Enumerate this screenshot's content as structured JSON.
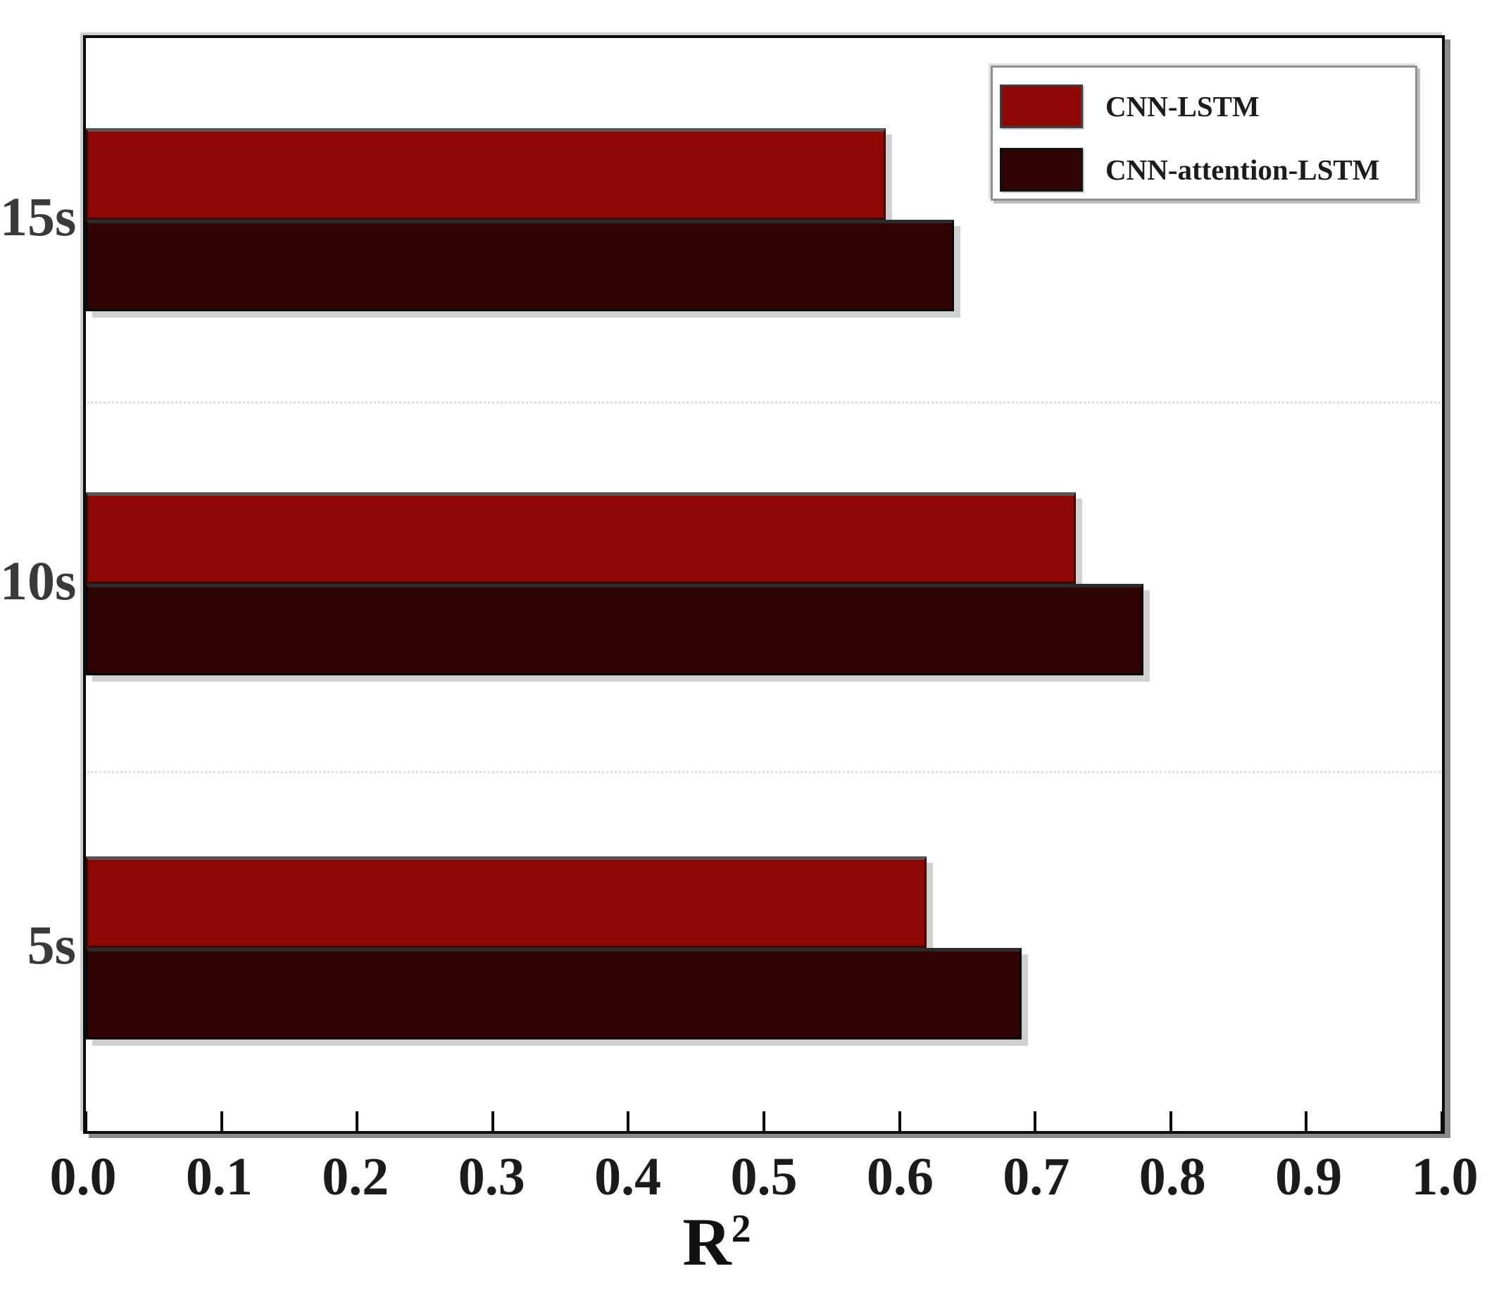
{
  "chart_data": {
    "type": "bar",
    "orientation": "horizontal",
    "title": "",
    "xlabel": "R",
    "xlabel_superscript": "2",
    "categories": [
      "15s",
      "10s",
      "5s"
    ],
    "series": [
      {
        "name": "CNN-LSTM",
        "color": "#8e0702",
        "values": [
          0.59,
          0.73,
          0.62
        ]
      },
      {
        "name": "CNN-attention-LSTM",
        "color": "#2f0402",
        "values": [
          0.64,
          0.78,
          0.69
        ]
      }
    ],
    "xlim": [
      0.0,
      1.0
    ],
    "x_tick_labels": [
      "0.0",
      "0.1",
      "0.2",
      "0.3",
      "0.4",
      "0.5",
      "0.6",
      "0.7",
      "0.8",
      "0.9",
      "1.0"
    ],
    "legend_position": "top-right",
    "grid": "dotted horizontal separators between category groups",
    "colors": {
      "frame": "#0b0b0b",
      "grid": "#dcdcdc",
      "tick_text": "#1b1b1d",
      "category_text": "#3a3a3a"
    }
  }
}
